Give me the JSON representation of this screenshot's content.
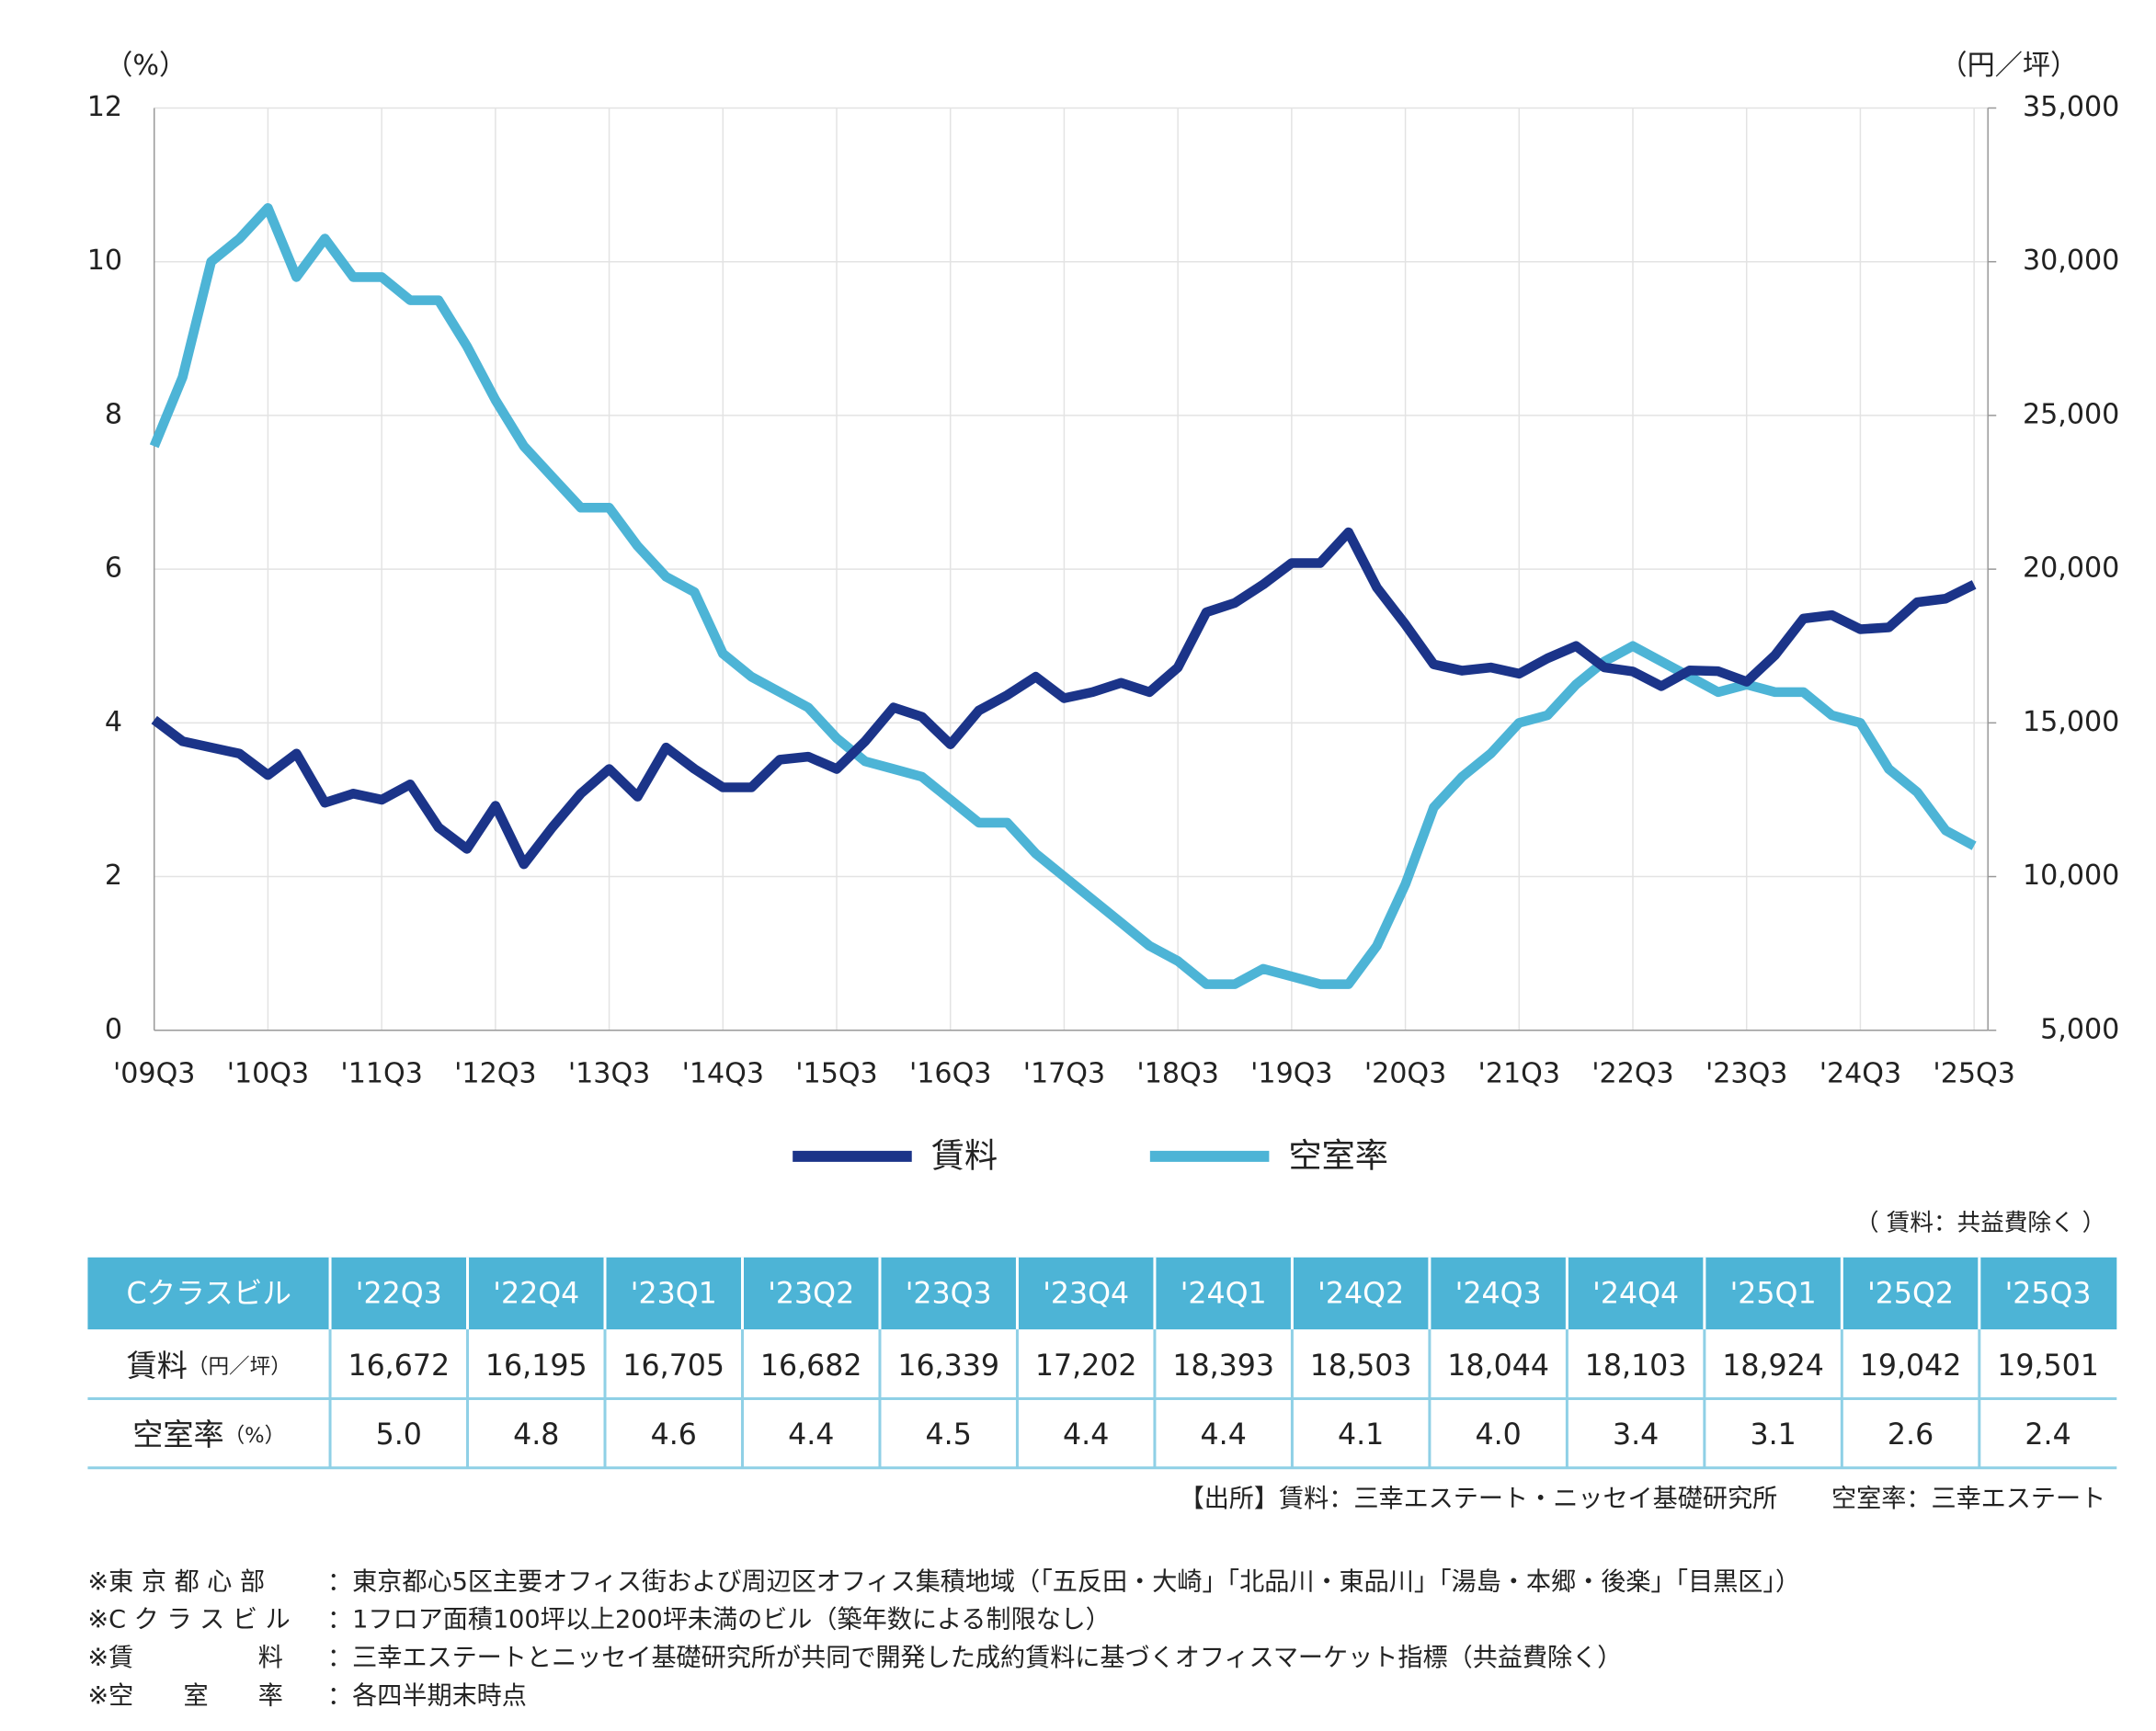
{
  "chart_data": {
    "type": "line",
    "y_unit": "（%）",
    "y2_unit": "（円／坪）",
    "categories": [
      "'09Q3",
      null,
      null,
      null,
      "'10Q3",
      null,
      null,
      null,
      "'11Q3",
      null,
      null,
      null,
      "'12Q3",
      null,
      null,
      null,
      "'13Q3",
      null,
      null,
      null,
      "'14Q3",
      null,
      null,
      null,
      "'15Q3",
      null,
      null,
      null,
      "'16Q3",
      null,
      null,
      null,
      "'17Q3",
      null,
      null,
      null,
      "'18Q3",
      null,
      null,
      null,
      "'19Q3",
      null,
      null,
      null,
      "'20Q3",
      null,
      null,
      null,
      "'21Q3",
      null,
      null,
      null,
      "'22Q3",
      null,
      null,
      null,
      "'23Q3",
      null,
      null,
      null,
      "'24Q3",
      null,
      null,
      null,
      "'25Q3"
    ],
    "series": [
      {
        "name": "賃料",
        "color": "#1b3489",
        "axis": "y2",
        "values": [
          15100,
          14400,
          14200,
          14000,
          13300,
          14000,
          12400,
          12700,
          12500,
          13000,
          11600,
          10900,
          12300,
          10400,
          11600,
          12700,
          13500,
          12600,
          14200,
          13500,
          12900,
          12900,
          13800,
          13900,
          13500,
          14400,
          15500,
          15200,
          14300,
          15400,
          15900,
          16500,
          15800,
          16000,
          16300,
          16000,
          16800,
          18600,
          18900,
          19500,
          20200,
          20200,
          21200,
          19400,
          18200,
          16900,
          16700,
          16800,
          16600,
          17100,
          17500,
          16800,
          16672,
          16195,
          16705,
          16682,
          16339,
          17202,
          18393,
          18503,
          18044,
          18103,
          18924,
          19042,
          19501
        ]
      },
      {
        "name": "空室率",
        "color": "#4db4d6",
        "values": [
          7.6,
          8.5,
          10.0,
          10.3,
          10.7,
          9.8,
          10.3,
          9.8,
          9.8,
          9.5,
          9.5,
          8.9,
          8.2,
          7.6,
          7.2,
          6.8,
          6.8,
          6.3,
          5.9,
          5.7,
          4.9,
          4.6,
          4.4,
          4.2,
          3.8,
          3.5,
          3.4,
          3.3,
          3.0,
          2.7,
          2.7,
          2.3,
          2.0,
          1.7,
          1.4,
          1.1,
          0.9,
          0.6,
          0.6,
          0.8,
          0.7,
          0.6,
          0.6,
          1.1,
          1.9,
          2.9,
          3.3,
          3.6,
          4.0,
          4.1,
          4.5,
          4.8,
          5.0,
          4.8,
          4.6,
          4.4,
          4.5,
          4.4,
          4.4,
          4.1,
          4.0,
          3.4,
          3.1,
          2.6,
          2.4
        ]
      }
    ],
    "ylim": [
      0,
      12
    ],
    "yticks": [
      0,
      2,
      4,
      6,
      8,
      10,
      12
    ],
    "y2lim": [
      5000,
      35000
    ],
    "y2ticks": [
      {
        "value": 5000,
        "label": "5,000"
      },
      {
        "value": 10000,
        "label": "10,000"
      },
      {
        "value": 15000,
        "label": "15,000"
      },
      {
        "value": 20000,
        "label": "20,000"
      },
      {
        "value": 25000,
        "label": "25,000"
      },
      {
        "value": 30000,
        "label": "30,000"
      },
      {
        "value": 35000,
        "label": "35,000"
      }
    ],
    "grid": true,
    "legend": "bottom"
  },
  "table": {
    "note": "（ 賃料：共益費除く ）",
    "header": [
      "Cクラスビル",
      "'22Q3",
      "'22Q4",
      "'23Q1",
      "'23Q2",
      "'23Q3",
      "'23Q4",
      "'24Q1",
      "'24Q2",
      "'24Q3",
      "'24Q4",
      "'25Q1",
      "'25Q2",
      "'25Q3"
    ],
    "rows": [
      {
        "label": "賃料",
        "unit": "（円／坪）",
        "cells": [
          "16,672",
          "16,195",
          "16,705",
          "16,682",
          "16,339",
          "17,202",
          "18,393",
          "18,503",
          "18,044",
          "18,103",
          "18,924",
          "19,042",
          "19,501"
        ]
      },
      {
        "label": "空室率",
        "unit": "（%）",
        "cells": [
          "5.0",
          "4.8",
          "4.6",
          "4.4",
          "4.5",
          "4.4",
          "4.4",
          "4.1",
          "4.0",
          "3.4",
          "3.1",
          "2.6",
          "2.4"
        ]
      }
    ]
  },
  "source": [
    "【出所】賃料：三幸エステート・ニッセイ基礎研究所",
    "空室率：三幸エステート"
  ],
  "notes": [
    {
      "label": "※東 京 都 心 部",
      "text": "：東京都心5区主要オフィス街および周辺区オフィス集積地域（「五反田・大崎」「北品川・東品川」「湯島・本郷・後楽」「目黒区」）"
    },
    {
      "label": "※C ク ラ ス ビ ル",
      "text": "：1フロア面積100坪以上200坪未満のビル（築年数による制限なし）"
    },
    {
      "label": "※賃　　　　　料",
      "text": "：三幸エステートとニッセイ基礎研究所が共同で開発した成約賃料に基づくオフィスマーケット指標（共益費除く）"
    },
    {
      "label": "※空　　室　　率",
      "text": "：各四半期末時点"
    }
  ]
}
